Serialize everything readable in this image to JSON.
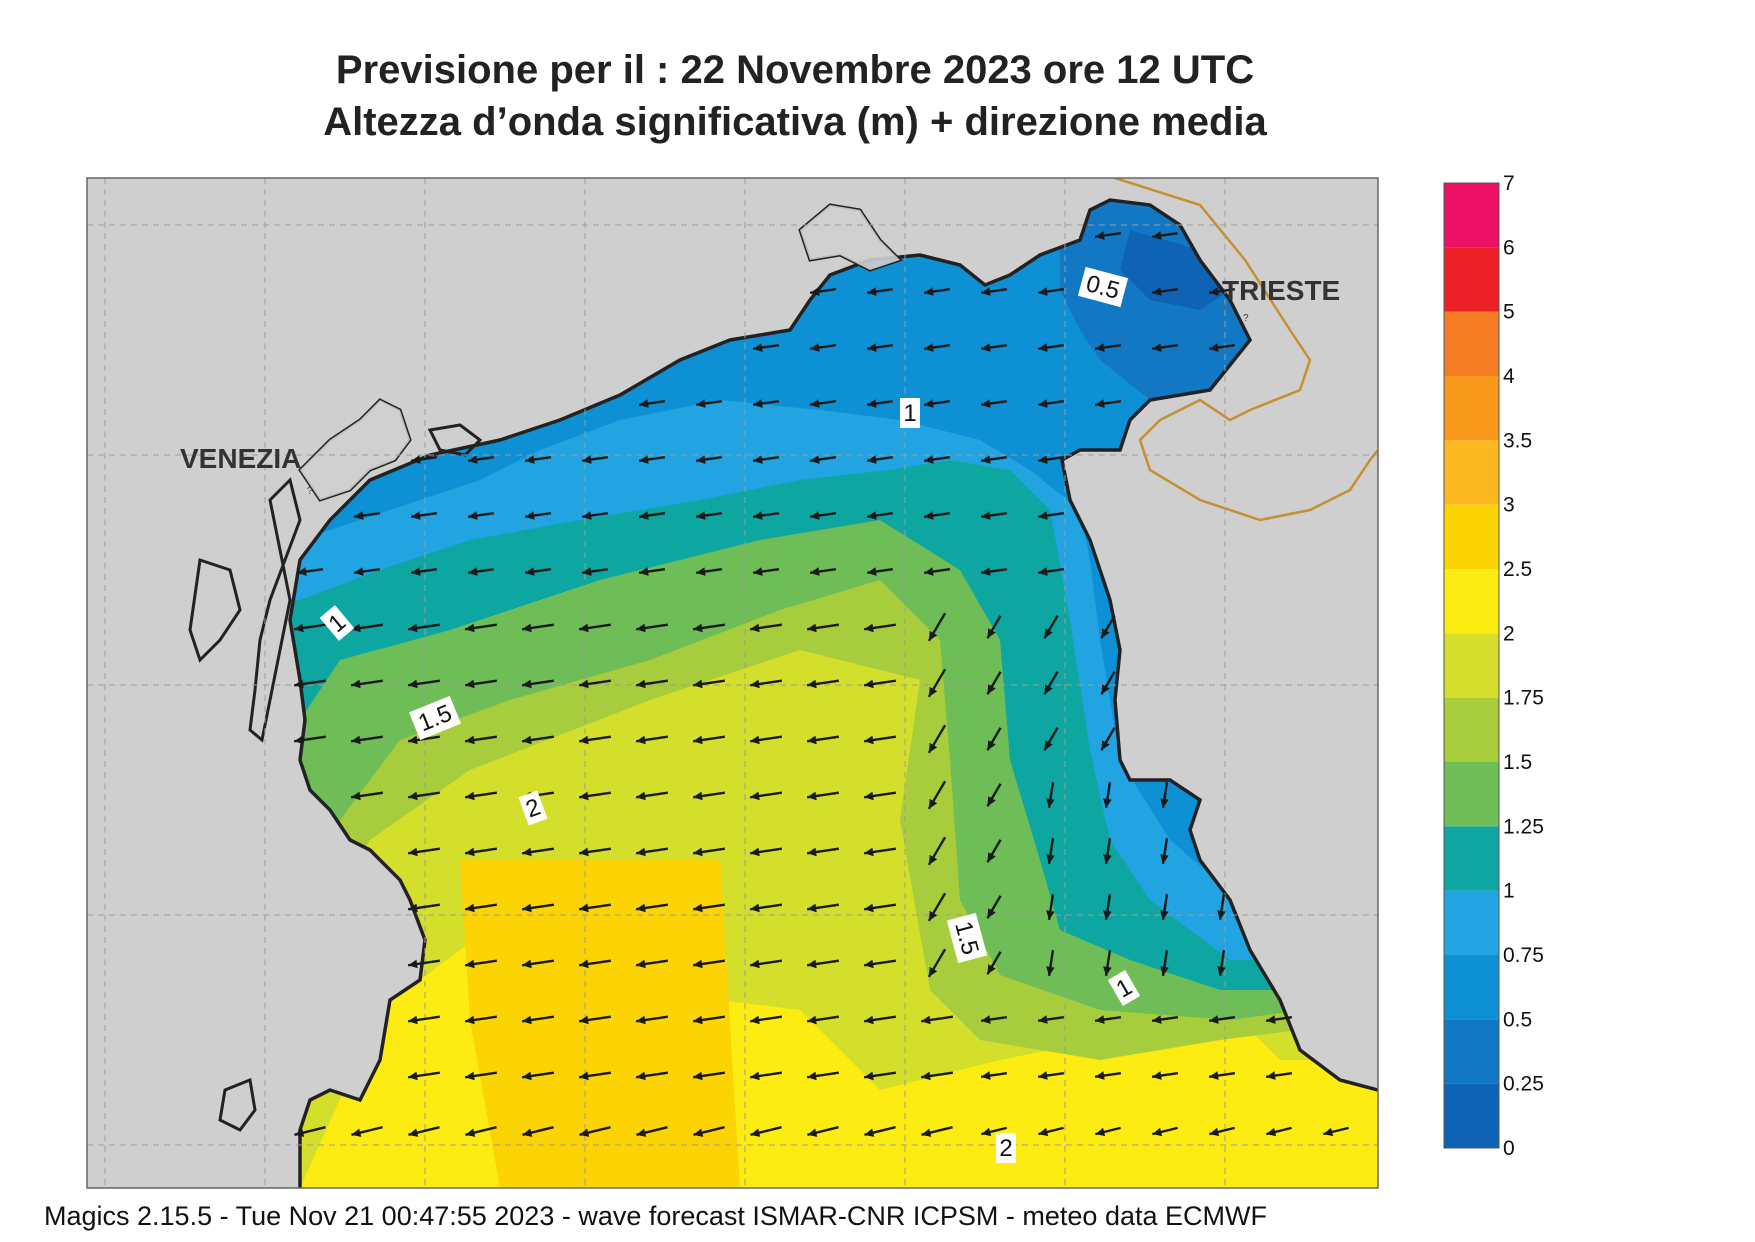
{
  "title_line1": "Previsione per il  :  22 Novembre  2023   ore 12 UTC",
  "title_line2": "Altezza d’onda significativa (m) + direzione media",
  "footer": "Magics 2.15.5 - Tue Nov 21 00:47:55 2023 - wave forecast  ISMAR-CNR  ICPSM - meteo data   ECMWF",
  "cities": [
    {
      "name": "VENEZIA"
    },
    {
      "name": "TRIESTE"
    }
  ],
  "contour_labels": [
    "0.5",
    "1",
    "1",
    "1.5",
    "2",
    "1.5",
    "1",
    "2"
  ],
  "colorbar": {
    "levels": [
      "0",
      "0.25",
      "0.5",
      "0.75",
      "1",
      "1.25",
      "1.5",
      "1.75",
      "2",
      "2.5",
      "3",
      "3.5",
      "4",
      "5",
      "6",
      "7"
    ],
    "colors": [
      "#0f63b5",
      "#1278c4",
      "#0e90d4",
      "#21a4e1",
      "#0ea6a0",
      "#6fbd56",
      "#a7cd3d",
      "#d4df2b",
      "#fcec12",
      "#fcd404",
      "#fcb820",
      "#f99a1c",
      "#f47d24",
      "#ec2127",
      "#ec1165"
    ]
  },
  "colors": {
    "land": "#cfcfcf",
    "coast": "#222222",
    "border": "#c49032",
    "arrow": "#1a1a1a"
  }
}
